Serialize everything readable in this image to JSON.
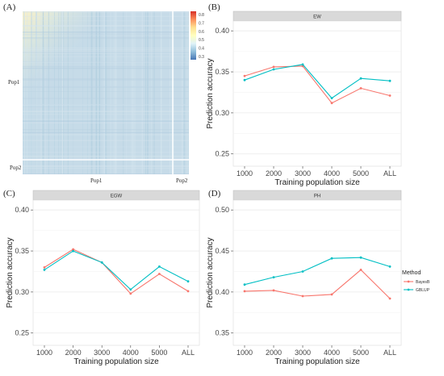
{
  "heatmap": {
    "panel_label": "(A)",
    "row_labels": [
      "Pop1",
      "Pop2"
    ],
    "col_labels": [
      "Pop1",
      "Pop2"
    ],
    "colorbar_ticks": [
      "0.8",
      "0.7",
      "0.6",
      "0.5",
      "0.4",
      "0.3"
    ],
    "colorbar_colors": [
      "#d73027",
      "#fc8d59",
      "#fee090",
      "#ffffbf",
      "#e0f3f8",
      "#91bfdb",
      "#4575b4"
    ],
    "cell_color": "#c6dbe8"
  },
  "legend": {
    "title": "Method",
    "entries": [
      "BayesB",
      "GBLUP"
    ]
  },
  "colors": {
    "BayesB": "#f8766d",
    "GBLUP": "#00bfc4",
    "strip": "#d9d9d9",
    "grid": "#ebebeb"
  },
  "chart_data": [
    {
      "type": "line",
      "panel_label": "(B)",
      "strip": "EW",
      "categories": [
        "1000",
        "2000",
        "3000",
        "4000",
        "5000",
        "ALL"
      ],
      "series": [
        {
          "name": "BayesB",
          "values": [
            0.345,
            0.356,
            0.357,
            0.312,
            0.33,
            0.321
          ]
        },
        {
          "name": "GBLUP",
          "values": [
            0.34,
            0.353,
            0.359,
            0.318,
            0.342,
            0.339
          ]
        }
      ],
      "xlabel": "Training population size",
      "ylabel": "Prediction accuracy",
      "ylim": [
        0.235,
        0.412
      ],
      "yticks": [
        "0.25",
        "0.30",
        "0.35",
        "0.40"
      ],
      "ytick_values": [
        0.25,
        0.3,
        0.35,
        0.4
      ]
    },
    {
      "type": "line",
      "panel_label": "(C)",
      "strip": "EGW",
      "categories": [
        "1000",
        "2000",
        "3000",
        "4000",
        "5000",
        "ALL"
      ],
      "series": [
        {
          "name": "BayesB",
          "values": [
            0.33,
            0.352,
            0.336,
            0.298,
            0.322,
            0.301
          ]
        },
        {
          "name": "GBLUP",
          "values": [
            0.327,
            0.35,
            0.336,
            0.303,
            0.331,
            0.313
          ]
        }
      ],
      "xlabel": "Training population size",
      "ylabel": "Prediction accuracy",
      "ylim": [
        0.235,
        0.412
      ],
      "yticks": [
        "0.25",
        "0.30",
        "0.35",
        "0.40"
      ],
      "ytick_values": [
        0.25,
        0.3,
        0.35,
        0.4
      ]
    },
    {
      "type": "line",
      "panel_label": "(D)",
      "strip": "PH",
      "categories": [
        "1000",
        "2000",
        "3000",
        "4000",
        "5000",
        "ALL"
      ],
      "series": [
        {
          "name": "BayesB",
          "values": [
            0.401,
            0.402,
            0.395,
            0.397,
            0.427,
            0.392
          ]
        },
        {
          "name": "GBLUP",
          "values": [
            0.409,
            0.418,
            0.425,
            0.441,
            0.442,
            0.431
          ]
        }
      ],
      "xlabel": "Training population size",
      "ylabel": "Prediction accuracy",
      "ylim": [
        0.335,
        0.512
      ],
      "yticks": [
        "0.35",
        "0.40",
        "0.45",
        "0.50"
      ],
      "ytick_values": [
        0.35,
        0.4,
        0.45,
        0.5
      ]
    }
  ]
}
